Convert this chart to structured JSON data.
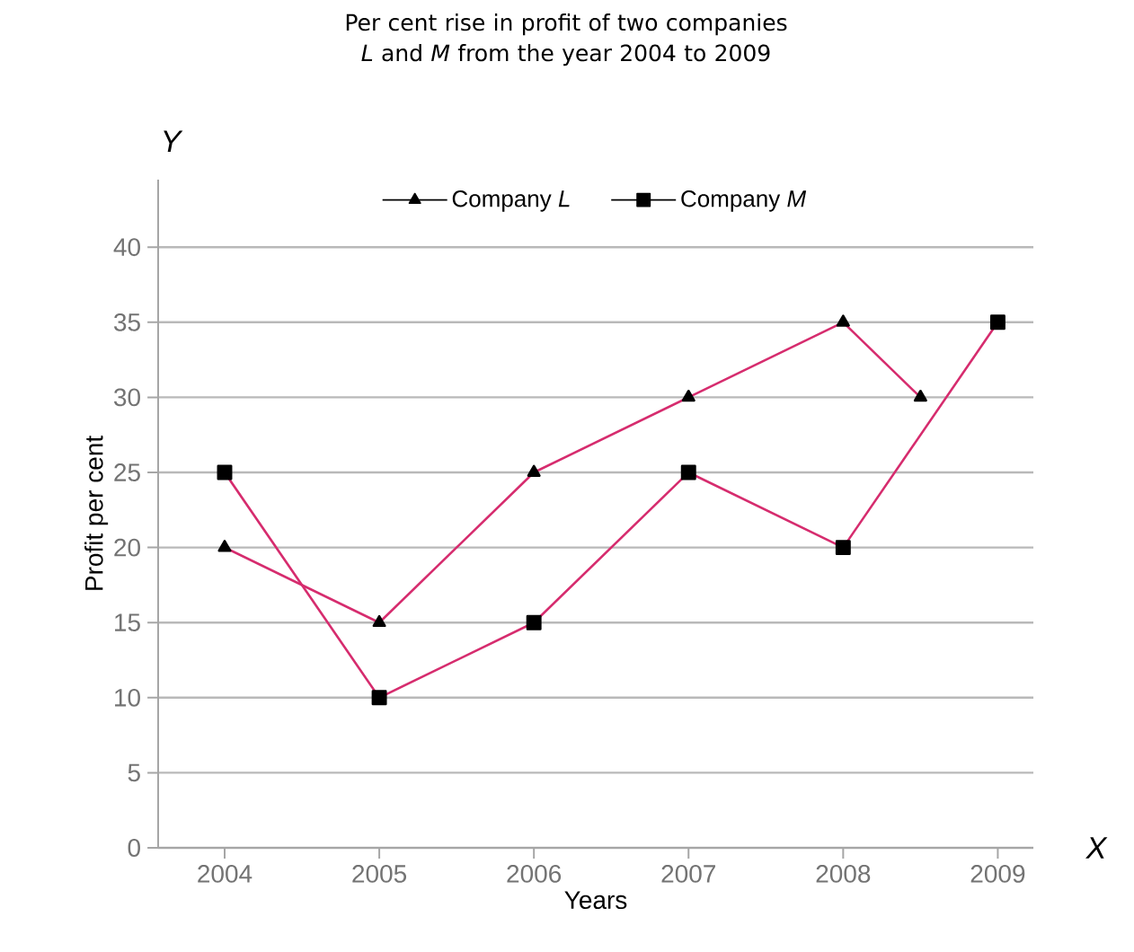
{
  "chart_data": {
    "type": "line",
    "title": "Per cent rise in profit of two companies *L* and *M* from the year 2004 to 2009",
    "xlabel": "Years",
    "ylabel": "Profit per cent",
    "annotations": [
      "Y",
      "X"
    ],
    "series": [
      {
        "name": "Company *L*",
        "color": "#d62c6e",
        "marker": "triangle",
        "x": [
          2004,
          2005,
          2006,
          2007,
          2008,
          2008.5
        ],
        "values": [
          20,
          15,
          25,
          30,
          35,
          30
        ]
      },
      {
        "name": "Company *M*",
        "color": "#d62c6e",
        "marker": "square",
        "x": [
          2004,
          2005,
          2006,
          2007,
          2008,
          2009
        ],
        "values": [
          25,
          10,
          15,
          25,
          20,
          35
        ]
      }
    ],
    "xlim": [
      2003.57,
      2009.23
    ],
    "ylim": [
      0,
      44.5
    ],
    "xticks": [
      2004,
      2005,
      2006,
      2007,
      2008,
      2009
    ],
    "yticks": [
      0,
      5,
      10,
      15,
      20,
      25,
      30,
      35,
      40
    ],
    "grid": "y",
    "legend": "top"
  }
}
